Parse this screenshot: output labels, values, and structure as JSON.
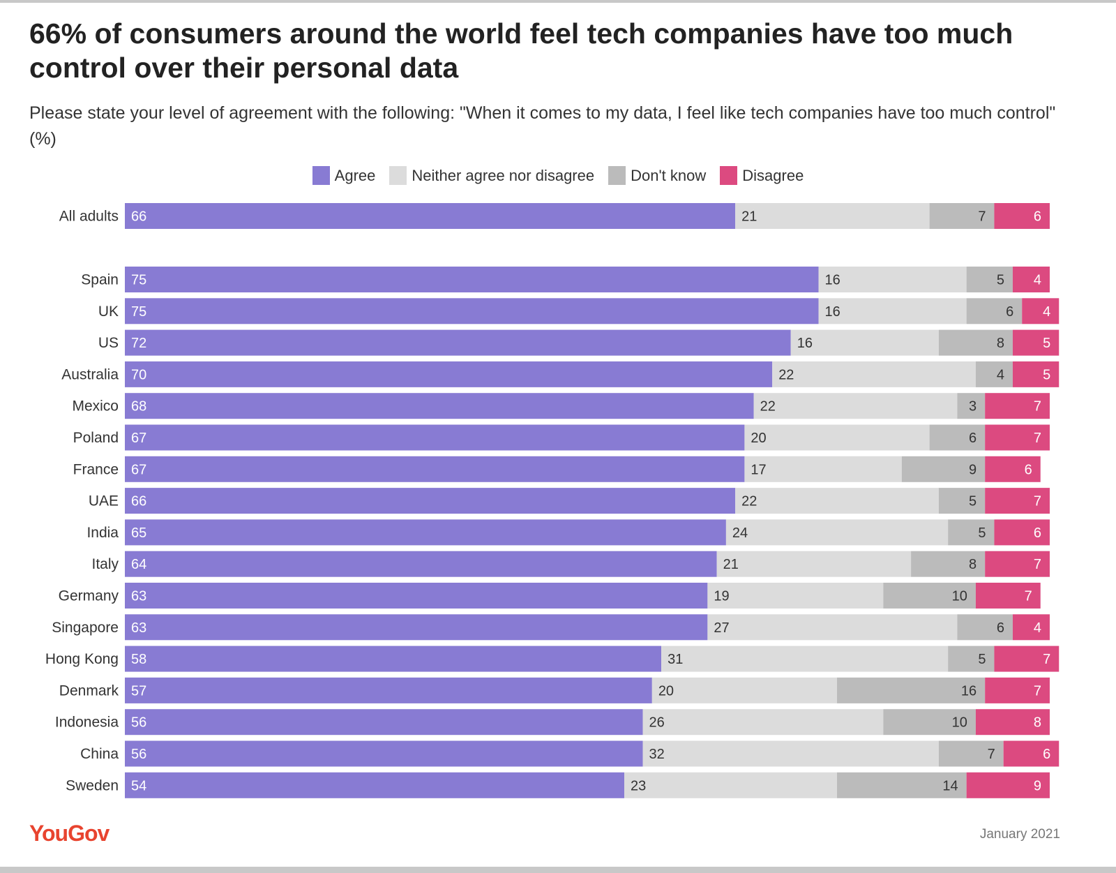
{
  "title": "66% of consumers around the world feel tech companies have too much control over their personal data",
  "subtitle": "Please state your level of agreement with the following: \"When it comes to my data, I feel like tech companies have too much control\" (%)",
  "footer": {
    "logo": "YouGov",
    "date": "January 2021"
  },
  "colors": {
    "Agree": "#887bd3",
    "Neither agree nor disagree": "#dcdcdc",
    "Don't know": "#bbbbbb",
    "Disagree": "#dc4a80"
  },
  "chart_data": {
    "type": "bar",
    "orientation": "horizontal-stacked",
    "legend_placement": "top",
    "grid": false,
    "unit": "%",
    "categories": [
      "All adults",
      "Spain",
      "UK",
      "US",
      "Australia",
      "Mexico",
      "Poland",
      "France",
      "UAE",
      "India",
      "Italy",
      "Germany",
      "Singapore",
      "Hong Kong",
      "Denmark",
      "Indonesia",
      "China",
      "Sweden"
    ],
    "series": [
      {
        "name": "Agree",
        "values": [
          66,
          75,
          75,
          72,
          70,
          68,
          67,
          67,
          66,
          65,
          64,
          63,
          63,
          58,
          57,
          56,
          56,
          54
        ]
      },
      {
        "name": "Neither agree nor disagree",
        "values": [
          21,
          16,
          16,
          16,
          22,
          22,
          20,
          17,
          22,
          24,
          21,
          19,
          27,
          31,
          20,
          26,
          32,
          23
        ]
      },
      {
        "name": "Don't know",
        "values": [
          7,
          5,
          6,
          8,
          4,
          3,
          6,
          9,
          5,
          5,
          8,
          10,
          6,
          5,
          16,
          10,
          7,
          14
        ]
      },
      {
        "name": "Disagree",
        "values": [
          6,
          4,
          4,
          5,
          5,
          7,
          7,
          6,
          7,
          6,
          7,
          7,
          4,
          7,
          7,
          8,
          6,
          9
        ]
      }
    ]
  }
}
